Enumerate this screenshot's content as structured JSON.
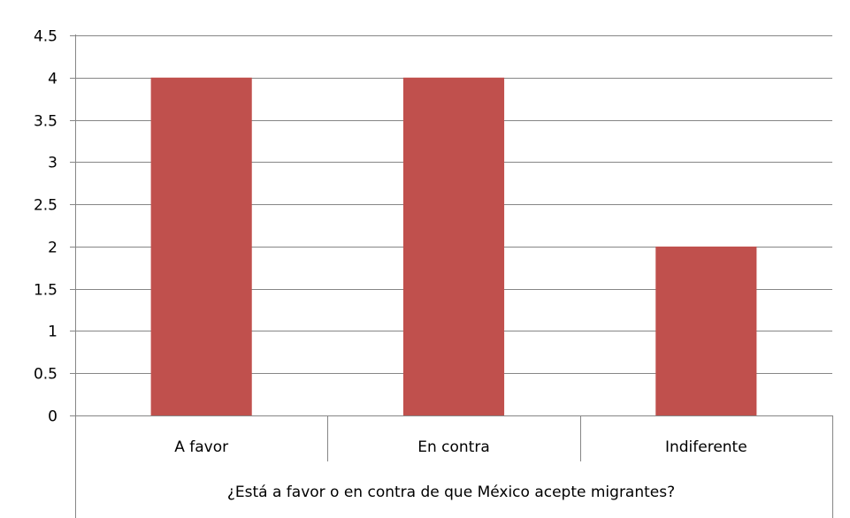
{
  "chart_data": {
    "type": "bar",
    "categories": [
      "A favor",
      "En contra",
      "Indiferente"
    ],
    "series": [
      {
        "values": [
          4,
          4,
          2
        ],
        "color": "#C0504D"
      }
    ],
    "xlabel": "¿Está a favor o en contra de que México acepte migrantes?",
    "ylabel": "",
    "ylim": [
      0,
      4.5
    ],
    "ytick_step": 0.5,
    "yticks": [
      "0",
      "0.5",
      "1",
      "1.5",
      "2",
      "2.5",
      "3",
      "3.5",
      "4",
      "4.5"
    ],
    "grid": true,
    "legend": "none",
    "colors": {
      "bar": "#C0504D",
      "gridline": "#868686",
      "axis": "#868686",
      "text": "#000000"
    }
  }
}
